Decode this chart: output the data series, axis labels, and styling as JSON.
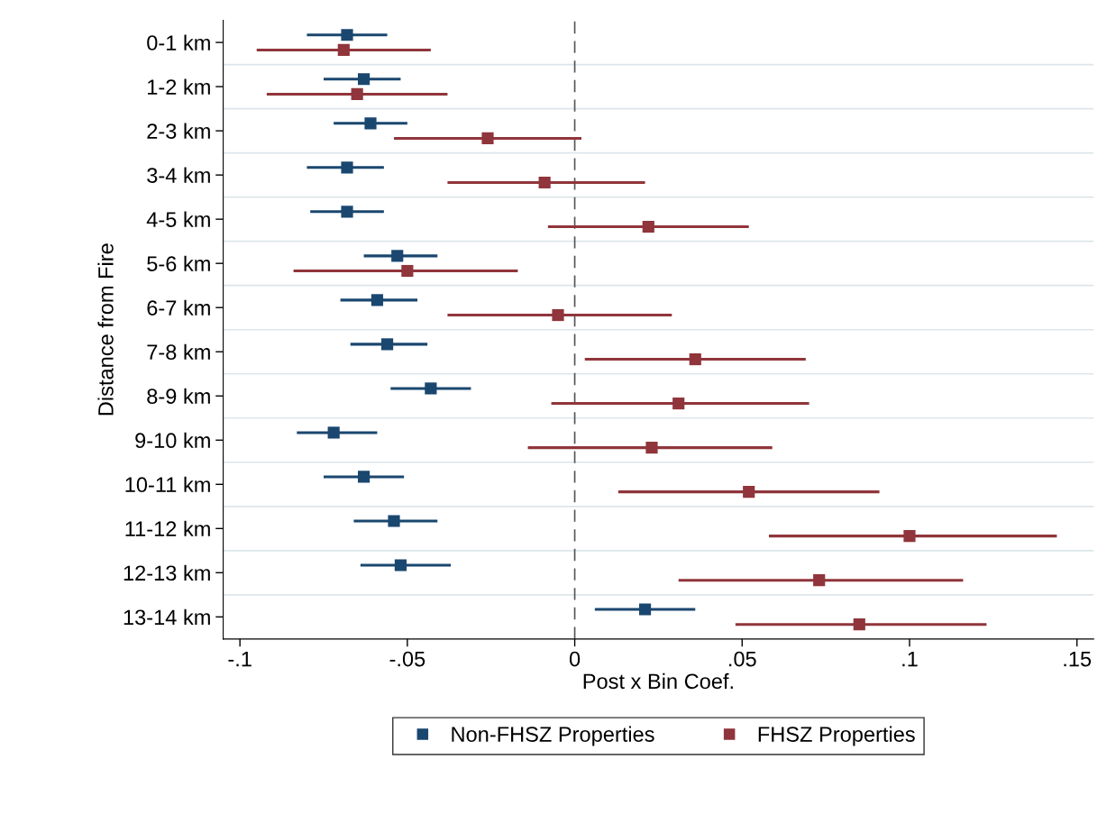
{
  "chart_data": {
    "type": "scatter",
    "orientation": "horizontal",
    "xlabel": "Post x Bin Coef.",
    "ylabel": "Distance from Fire",
    "categories": [
      "0-1 km",
      "1-2 km",
      "2-3 km",
      "3-4 km",
      "4-5 km",
      "5-6 km",
      "6-7 km",
      "7-8 km",
      "8-9 km",
      "9-10 km",
      "10-11 km",
      "11-12 km",
      "12-13 km",
      "13-14 km"
    ],
    "series": [
      {
        "name": "Non-FHSZ Properties",
        "color": "#1a476f",
        "values": [
          -0.068,
          -0.063,
          -0.061,
          -0.068,
          -0.068,
          -0.053,
          -0.059,
          -0.056,
          -0.043,
          -0.072,
          -0.063,
          -0.054,
          -0.052,
          0.021
        ],
        "errors": [
          [
            -0.08,
            -0.056
          ],
          [
            -0.075,
            -0.052
          ],
          [
            -0.072,
            -0.05
          ],
          [
            -0.08,
            -0.057
          ],
          [
            -0.079,
            -0.057
          ],
          [
            -0.063,
            -0.041
          ],
          [
            -0.07,
            -0.047
          ],
          [
            -0.067,
            -0.044
          ],
          [
            -0.055,
            -0.031
          ],
          [
            -0.083,
            -0.059
          ],
          [
            -0.075,
            -0.051
          ],
          [
            -0.066,
            -0.041
          ],
          [
            -0.064,
            -0.037
          ],
          [
            0.006,
            0.036
          ]
        ]
      },
      {
        "name": "FHSZ Properties",
        "color": "#90353b",
        "values": [
          -0.069,
          -0.065,
          -0.026,
          -0.009,
          0.022,
          -0.05,
          -0.005,
          0.036,
          0.031,
          0.023,
          0.052,
          0.1,
          0.073,
          0.085
        ],
        "errors": [
          [
            -0.095,
            -0.043
          ],
          [
            -0.092,
            -0.038
          ],
          [
            -0.054,
            0.002
          ],
          [
            -0.038,
            0.021
          ],
          [
            -0.008,
            0.052
          ],
          [
            -0.084,
            -0.017
          ],
          [
            -0.038,
            0.029
          ],
          [
            0.003,
            0.069
          ],
          [
            -0.007,
            0.07
          ],
          [
            -0.014,
            0.059
          ],
          [
            0.013,
            0.091
          ],
          [
            0.058,
            0.144
          ],
          [
            0.031,
            0.116
          ],
          [
            0.048,
            0.123
          ]
        ]
      }
    ],
    "xlim": [
      -0.105,
      0.155
    ],
    "xticks": [
      {
        "value": -0.1,
        "label": "-.1"
      },
      {
        "value": -0.05,
        "label": "-.05"
      },
      0,
      {
        "value": 0.05,
        "label": ".05"
      },
      {
        "value": 0.1,
        "label": ".1"
      },
      {
        "value": 0.15,
        "label": ".15"
      }
    ],
    "ref_lines": [
      {
        "axis": "x",
        "value": 0,
        "color": "#555555",
        "line_style": "dashed"
      }
    ],
    "marker": "square",
    "grid": "y",
    "legend": "bottom"
  }
}
